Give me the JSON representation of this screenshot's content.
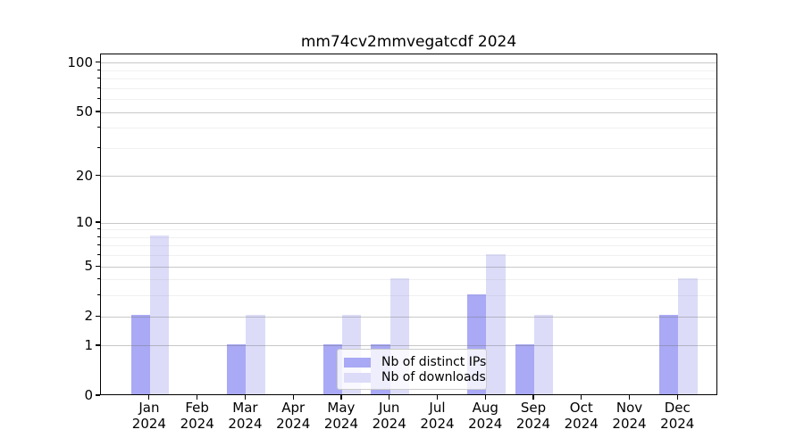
{
  "chart_data": {
    "type": "bar",
    "title": "mm74cv2mmvegatcdf 2024",
    "x": {
      "months": [
        "Jan",
        "Feb",
        "Mar",
        "Apr",
        "May",
        "Jun",
        "Jul",
        "Aug",
        "Sep",
        "Oct",
        "Nov",
        "Dec"
      ],
      "year": "2024"
    },
    "series": [
      {
        "name": "Nb of distinct IPs",
        "color": "#a9a9f5",
        "values": [
          2,
          0,
          1,
          0,
          1,
          1,
          0,
          3,
          1,
          0,
          0,
          2
        ]
      },
      {
        "name": "Nb of downloads",
        "color": "#dcdcf9",
        "values": [
          8,
          0,
          2,
          0,
          2,
          4,
          0,
          6,
          2,
          0,
          0,
          4
        ]
      }
    ],
    "yscale": "log1p",
    "ylim": [
      0,
      113
    ],
    "yticks": [
      0,
      1,
      2,
      5,
      10,
      20,
      50,
      100
    ],
    "yticks_minor": [
      3,
      4,
      6,
      7,
      8,
      9,
      30,
      40,
      60,
      70,
      80,
      90
    ],
    "grid": "horizontal, major and minor, drawn over bars",
    "legend_position": "lower center"
  },
  "colors": {
    "background": "#ffffff",
    "axis": "#000000",
    "grid_major": "#c6c6c6",
    "grid_minor": "#ededed",
    "legend_border": "#cbcbcb",
    "bar_distinct_ips": "#a9a9f5",
    "bar_downloads": "#dcdcf9"
  }
}
